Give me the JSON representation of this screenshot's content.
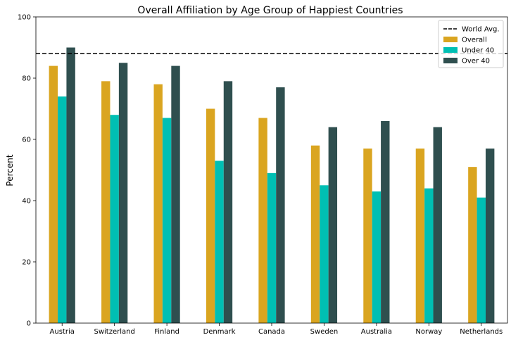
{
  "chart_data": {
    "type": "bar",
    "title": "Overall Affiliation by Age Group of Happiest Countries",
    "xlabel": "",
    "ylabel": "Percent",
    "ylim": [
      0,
      100
    ],
    "yticks": [
      0,
      20,
      40,
      60,
      80,
      100
    ],
    "grid": false,
    "legend_position": "top-right",
    "categories": [
      "Austria",
      "Switzerland",
      "Finland",
      "Denmark",
      "Canada",
      "Sweden",
      "Australia",
      "Norway",
      "Netherlands"
    ],
    "series": [
      {
        "name": "Overall",
        "color": "#DAA520",
        "values": [
          84,
          79,
          78,
          70,
          67,
          58,
          57,
          57,
          51
        ]
      },
      {
        "name": "Under 40",
        "color": "#00BFB3",
        "values": [
          74,
          68,
          67,
          53,
          49,
          45,
          43,
          44,
          41
        ]
      },
      {
        "name": "Over 40",
        "color": "#2F4F4F",
        "values": [
          90,
          85,
          84,
          79,
          77,
          64,
          66,
          64,
          57
        ]
      }
    ],
    "reference_line": {
      "name": "World Avg.",
      "value": 88,
      "style": "dashed",
      "color": "#000000"
    }
  }
}
